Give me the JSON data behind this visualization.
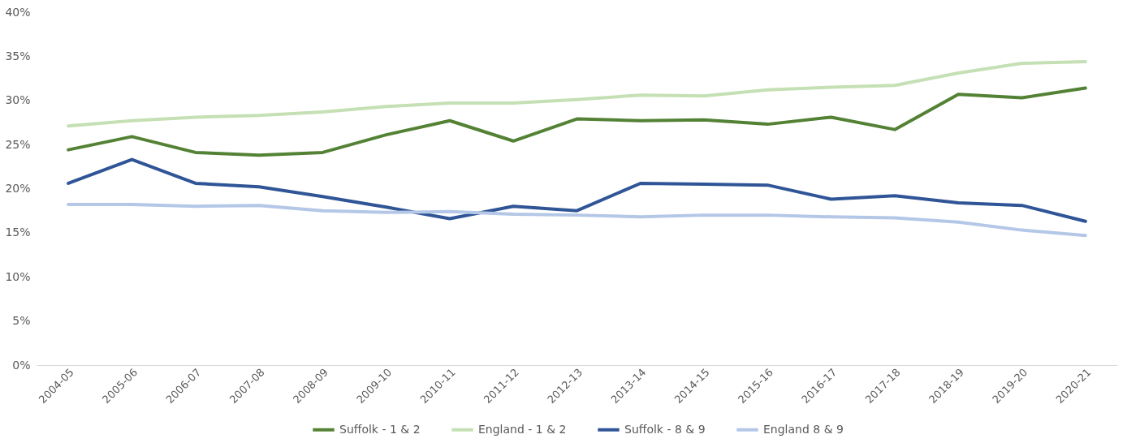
{
  "chart_data": {
    "type": "line",
    "categories": [
      "2004-05",
      "2005-06",
      "2006-07",
      "2007-08",
      "2008-09",
      "2009-10",
      "2010-11",
      "2011-12",
      "2012-13",
      "2013-14",
      "2014-15",
      "2015-16",
      "2016-17",
      "2017-18",
      "2018-19",
      "2019-20",
      "2020-21"
    ],
    "series": [
      {
        "name": "Suffolk - 1 & 2",
        "color": "#548235",
        "values": [
          24.4,
          25.9,
          24.1,
          23.8,
          24.1,
          26.1,
          27.7,
          25.4,
          27.9,
          27.7,
          27.8,
          27.3,
          28.1,
          26.7,
          30.7,
          30.3,
          31.4
        ]
      },
      {
        "name": "England - 1 & 2",
        "color": "#c5e0b4",
        "values": [
          27.1,
          27.7,
          28.1,
          28.3,
          28.7,
          29.3,
          29.7,
          29.7,
          30.1,
          30.6,
          30.5,
          31.2,
          31.5,
          31.7,
          33.1,
          34.2,
          34.4
        ]
      },
      {
        "name": "Suffolk - 8 & 9",
        "color": "#2f5597",
        "values": [
          20.6,
          23.3,
          20.6,
          20.2,
          19.1,
          17.9,
          16.6,
          18.0,
          17.5,
          20.6,
          20.5,
          20.4,
          18.8,
          19.2,
          18.4,
          18.1,
          16.3
        ]
      },
      {
        "name": "England 8 & 9",
        "color": "#b4c7e7",
        "values": [
          18.2,
          18.2,
          18.0,
          18.1,
          17.5,
          17.3,
          17.4,
          17.1,
          17.0,
          16.8,
          17.0,
          17.0,
          16.8,
          16.7,
          16.2,
          15.3,
          14.7
        ]
      }
    ],
    "ylim": [
      0,
      40
    ],
    "yticks": [
      {
        "value": 0,
        "label": "0%"
      },
      {
        "value": 5,
        "label": "5%"
      },
      {
        "value": 10,
        "label": "10%"
      },
      {
        "value": 15,
        "label": "15%"
      },
      {
        "value": 20,
        "label": "20%"
      },
      {
        "value": 25,
        "label": "25%"
      },
      {
        "value": 30,
        "label": "30%"
      },
      {
        "value": 35,
        "label": "35%"
      },
      {
        "value": 40,
        "label": "40%"
      }
    ],
    "legend": "bottom",
    "line_style": "solid"
  }
}
